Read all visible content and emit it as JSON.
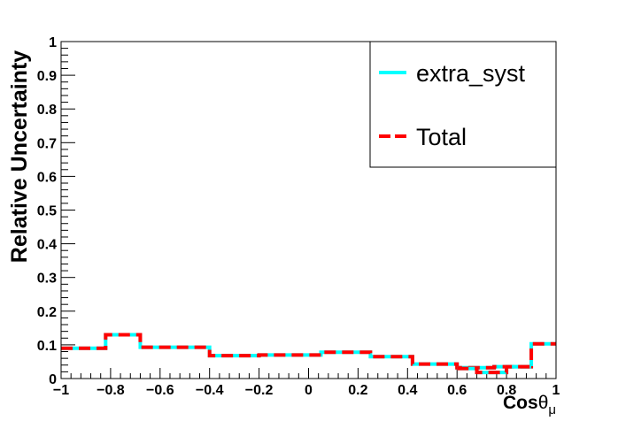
{
  "chart_data": {
    "type": "line",
    "ylabel": "Relative Uncertainty",
    "xlabel_main": "Cos",
    "xlabel_theta": "θ",
    "xlabel_sub": "μ",
    "xlim": [
      -1,
      1
    ],
    "ylim": [
      0,
      1
    ],
    "x_ticks": [
      -1,
      -0.8,
      -0.6,
      -0.4,
      -0.2,
      0,
      0.2,
      0.4,
      0.6,
      0.8,
      1
    ],
    "x_tick_labels": [
      "−1",
      "−0.8",
      "−0.6",
      "−0.4",
      "−0.2",
      "0",
      "0.2",
      "0.4",
      "0.6",
      "0.8",
      "1"
    ],
    "y_ticks": [
      0,
      0.1,
      0.2,
      0.3,
      0.4,
      0.5,
      0.6,
      0.7,
      0.8,
      0.9,
      1
    ],
    "y_tick_labels": [
      "0",
      "0.1",
      "0.2",
      "0.3",
      "0.4",
      "0.5",
      "0.6",
      "0.7",
      "0.8",
      "0.9",
      "1"
    ],
    "legend_position": "top-right",
    "bin_edges": [
      -1,
      -0.82,
      -0.68,
      -0.4,
      -0.2,
      0.05,
      0.25,
      0.42,
      0.6,
      0.75,
      0.9,
      1
    ],
    "series": [
      {
        "name": "extra_syst",
        "style": "solid",
        "color": "#00ffff",
        "values": [
          0.09,
          0.13,
          0.093,
          0.068,
          0.07,
          0.078,
          0.065,
          0.043,
          0.032,
          0.035,
          0.103
        ]
      },
      {
        "name": "Total",
        "style": "dashed",
        "color": "#ff0000",
        "values": [
          0.09,
          0.13,
          0.093,
          0.068,
          0.07,
          0.078,
          0.065,
          0.043,
          0.032,
          0.035,
          0.103
        ]
      }
    ],
    "legend_overlay_steps": [
      {
        "from": 0.6,
        "to": 0.68,
        "value": 0.03
      },
      {
        "from": 0.68,
        "to": 0.8,
        "value": 0.018
      },
      {
        "from": 0.8,
        "to": 0.9,
        "value": 0.035
      }
    ]
  }
}
